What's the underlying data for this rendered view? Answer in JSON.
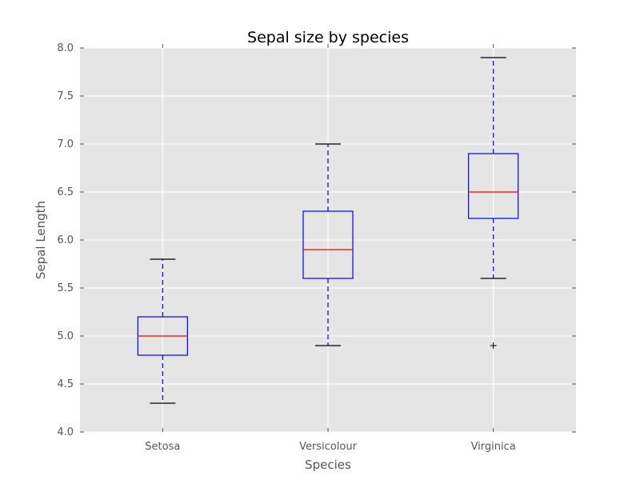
{
  "chart_data": {
    "type": "box",
    "title": "Sepal size by species",
    "xlabel": "Species",
    "ylabel": "Sepal Length",
    "ylim": [
      4.0,
      8.0
    ],
    "yticks": [
      "4.0",
      "4.5",
      "5.0",
      "5.5",
      "6.0",
      "6.5",
      "7.0",
      "7.5",
      "8.0"
    ],
    "grid": true,
    "categories": [
      "Setosa",
      "Versicolour",
      "Virginica"
    ],
    "boxes": [
      {
        "name": "Setosa",
        "whisker_low": 4.3,
        "q1": 4.8,
        "median": 5.0,
        "q3": 5.2,
        "whisker_high": 5.8,
        "outliers": []
      },
      {
        "name": "Versicolour",
        "whisker_low": 4.9,
        "q1": 5.6,
        "median": 5.9,
        "q3": 6.3,
        "whisker_high": 7.0,
        "outliers": []
      },
      {
        "name": "Virginica",
        "whisker_low": 5.6,
        "q1": 6.225,
        "median": 6.5,
        "q3": 6.9,
        "whisker_high": 7.9,
        "outliers": [
          4.9
        ]
      }
    ],
    "colors": {
      "box": "#0000ff",
      "median": "#ff0000",
      "whisker": "#0000ff",
      "cap": "#000000",
      "outlier": "#000000",
      "plot_bg": "#e5e5e5",
      "grid": "#ffffff"
    }
  }
}
